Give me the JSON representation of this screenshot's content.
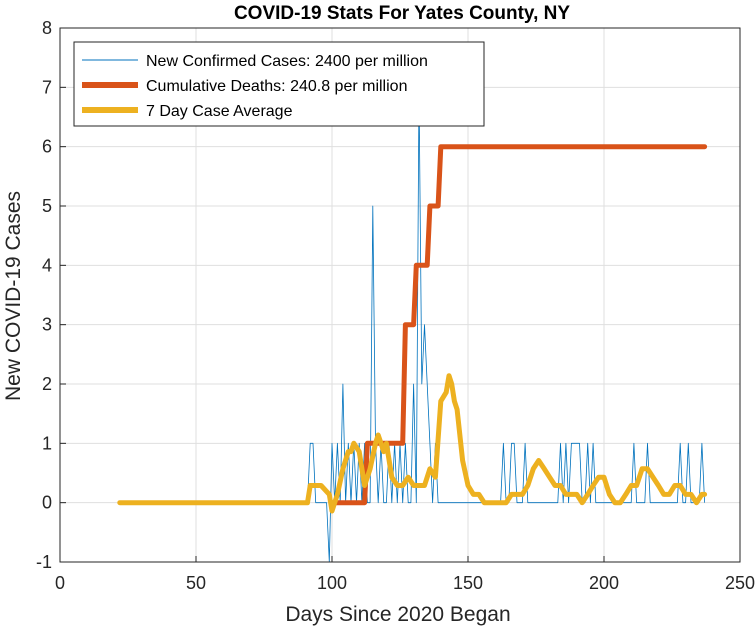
{
  "chart_data": {
    "type": "line",
    "title": "COVID-19 Stats For Yates County, NY",
    "xlabel": "Days Since 2020 Began",
    "ylabel": "New COVID-19 Cases",
    "xlim": [
      0,
      250
    ],
    "ylim": [
      -1,
      8
    ],
    "xticks": [
      0,
      50,
      100,
      150,
      200,
      250
    ],
    "yticks": [
      -1,
      0,
      1,
      2,
      3,
      4,
      5,
      6,
      7,
      8
    ],
    "grid": true,
    "legend_position": "top-left",
    "series": [
      {
        "name": "New Confirmed Cases: 2400 per million",
        "color": "#0072BD",
        "width": 0.8,
        "x": [
          22,
          91,
          92,
          93,
          94,
          95,
          96,
          97,
          98,
          99,
          100,
          101,
          102,
          103,
          104,
          105,
          106,
          107,
          108,
          109,
          110,
          111,
          112,
          113,
          114,
          115,
          116,
          117,
          118,
          119,
          120,
          121,
          122,
          123,
          124,
          125,
          126,
          127,
          128,
          129,
          130,
          131,
          132,
          133,
          134,
          135,
          136,
          137,
          138,
          139,
          140,
          141,
          142,
          143,
          144,
          145,
          146,
          147,
          148,
          149,
          150,
          151,
          152,
          153,
          154,
          155,
          156,
          157,
          158,
          159,
          160,
          161,
          162,
          163,
          164,
          165,
          166,
          167,
          168,
          169,
          170,
          171,
          172,
          173,
          174,
          175,
          176,
          177,
          178,
          179,
          180,
          181,
          182,
          183,
          184,
          185,
          186,
          187,
          188,
          189,
          190,
          191,
          192,
          193,
          194,
          195,
          196,
          197,
          198,
          199,
          200,
          201,
          202,
          203,
          204,
          205,
          206,
          207,
          208,
          209,
          210,
          211,
          212,
          213,
          214,
          215,
          216,
          217,
          218,
          219,
          220,
          221,
          222,
          223,
          224,
          225,
          226,
          227,
          228,
          229,
          230,
          231,
          232,
          233,
          234,
          235,
          236,
          237
        ],
        "y": [
          0,
          0,
          1,
          1,
          0,
          0,
          0,
          0,
          0,
          -1,
          1,
          0,
          1,
          0,
          2,
          0,
          1,
          0,
          1,
          0,
          1,
          0,
          1,
          0,
          0,
          5,
          1,
          0,
          1,
          0,
          0,
          1,
          0,
          1,
          0,
          1,
          0,
          1,
          0,
          0,
          2,
          0,
          7,
          2,
          3,
          2,
          1,
          0,
          1,
          0,
          0,
          0,
          0,
          0,
          0,
          0,
          0,
          0,
          0,
          0,
          0,
          0,
          0,
          0,
          0,
          0,
          0,
          0,
          0,
          0,
          0,
          0,
          0,
          1,
          0,
          0,
          1,
          1,
          0,
          0,
          0,
          1,
          0,
          0,
          0,
          0,
          0,
          0,
          0,
          0,
          0,
          0,
          0,
          0,
          1,
          0,
          1,
          0,
          1,
          1,
          1,
          1,
          0,
          0,
          1,
          0,
          1,
          0,
          0,
          0,
          0,
          0,
          0,
          0,
          0,
          0,
          0,
          0,
          0,
          0,
          0,
          1,
          0,
          0,
          0,
          0,
          1,
          0,
          0,
          0,
          0,
          0,
          0,
          0,
          0,
          0,
          0,
          0,
          1,
          0,
          0,
          1,
          0,
          0,
          0,
          0,
          1,
          0
        ],
        "peak_note": ""
      },
      {
        "name": "Cumulative Deaths: 240.8 per million",
        "color": "#D95319",
        "width": 5,
        "x": [
          100,
          112,
          113,
          114,
          115,
          121,
          122,
          126,
          127,
          130,
          131,
          135,
          136,
          139,
          140,
          237
        ],
        "y": [
          0,
          0,
          1,
          1,
          1,
          1,
          1,
          1,
          3,
          3,
          4,
          4,
          5,
          5,
          6,
          6
        ]
      },
      {
        "name": "7 Day Case Average",
        "color": "#EDB120",
        "width": 5,
        "x": [
          22,
          91,
          92,
          96,
          99,
          100,
          102,
          104,
          106,
          107,
          108,
          110,
          111,
          112,
          114,
          116,
          117,
          118,
          119,
          120,
          122,
          124,
          126,
          128,
          130,
          132,
          134,
          136,
          138,
          140,
          142,
          143,
          144,
          145,
          146,
          148,
          150,
          152,
          154,
          156,
          158,
          160,
          162,
          164,
          166,
          168,
          170,
          172,
          174,
          176,
          178,
          180,
          182,
          184,
          186,
          188,
          190,
          192,
          194,
          196,
          198,
          200,
          202,
          204,
          206,
          208,
          210,
          212,
          214,
          216,
          218,
          220,
          222,
          224,
          226,
          228,
          230,
          232,
          234,
          236,
          237
        ],
        "y": [
          0,
          0,
          0.29,
          0.29,
          0.14,
          -0.14,
          0.14,
          0.57,
          0.86,
          0.86,
          1.0,
          0.86,
          0.57,
          0.29,
          0.57,
          1.0,
          1.14,
          1.0,
          0.86,
          1.0,
          0.43,
          0.29,
          0.29,
          0.43,
          0.29,
          0.29,
          0.29,
          0.57,
          0.43,
          1.71,
          1.86,
          2.14,
          2.0,
          1.71,
          1.57,
          0.71,
          0.29,
          0.14,
          0.14,
          0,
          0,
          0,
          0,
          0,
          0.14,
          0.14,
          0.14,
          0.29,
          0.57,
          0.71,
          0.57,
          0.43,
          0.29,
          0.29,
          0.14,
          0.14,
          0.14,
          0,
          0.14,
          0.29,
          0.43,
          0.43,
          0.14,
          0,
          0,
          0.14,
          0.29,
          0.29,
          0.57,
          0.57,
          0.43,
          0.29,
          0.14,
          0.14,
          0.29,
          0.29,
          0.14,
          0.14,
          0,
          0.14,
          0.14
        ]
      }
    ]
  }
}
